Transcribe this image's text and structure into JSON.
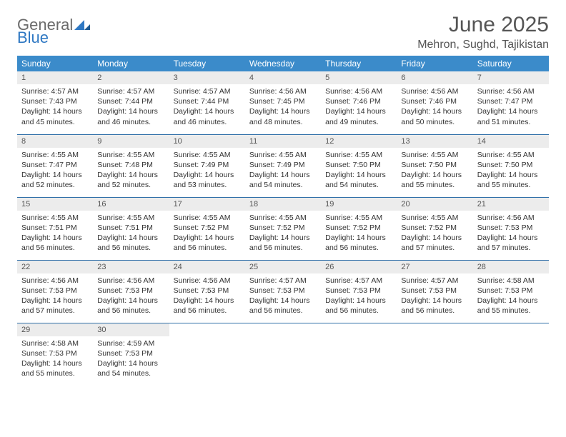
{
  "logo": {
    "line1": "General",
    "line2": "Blue"
  },
  "title": "June 2025",
  "location": "Mehron, Sughd, Tajikistan",
  "colors": {
    "header_bg": "#3b8bca",
    "header_text": "#ffffff",
    "daynum_bg": "#ececec",
    "border": "#2f6fa8",
    "logo_gray": "#6a6a6a",
    "logo_blue": "#2f78c3"
  },
  "weekdays": [
    "Sunday",
    "Monday",
    "Tuesday",
    "Wednesday",
    "Thursday",
    "Friday",
    "Saturday"
  ],
  "weeks": [
    [
      {
        "n": "1",
        "sr": "Sunrise: 4:57 AM",
        "ss": "Sunset: 7:43 PM",
        "d1": "Daylight: 14 hours",
        "d2": "and 45 minutes."
      },
      {
        "n": "2",
        "sr": "Sunrise: 4:57 AM",
        "ss": "Sunset: 7:44 PM",
        "d1": "Daylight: 14 hours",
        "d2": "and 46 minutes."
      },
      {
        "n": "3",
        "sr": "Sunrise: 4:57 AM",
        "ss": "Sunset: 7:44 PM",
        "d1": "Daylight: 14 hours",
        "d2": "and 46 minutes."
      },
      {
        "n": "4",
        "sr": "Sunrise: 4:56 AM",
        "ss": "Sunset: 7:45 PM",
        "d1": "Daylight: 14 hours",
        "d2": "and 48 minutes."
      },
      {
        "n": "5",
        "sr": "Sunrise: 4:56 AM",
        "ss": "Sunset: 7:46 PM",
        "d1": "Daylight: 14 hours",
        "d2": "and 49 minutes."
      },
      {
        "n": "6",
        "sr": "Sunrise: 4:56 AM",
        "ss": "Sunset: 7:46 PM",
        "d1": "Daylight: 14 hours",
        "d2": "and 50 minutes."
      },
      {
        "n": "7",
        "sr": "Sunrise: 4:56 AM",
        "ss": "Sunset: 7:47 PM",
        "d1": "Daylight: 14 hours",
        "d2": "and 51 minutes."
      }
    ],
    [
      {
        "n": "8",
        "sr": "Sunrise: 4:55 AM",
        "ss": "Sunset: 7:47 PM",
        "d1": "Daylight: 14 hours",
        "d2": "and 52 minutes."
      },
      {
        "n": "9",
        "sr": "Sunrise: 4:55 AM",
        "ss": "Sunset: 7:48 PM",
        "d1": "Daylight: 14 hours",
        "d2": "and 52 minutes."
      },
      {
        "n": "10",
        "sr": "Sunrise: 4:55 AM",
        "ss": "Sunset: 7:49 PM",
        "d1": "Daylight: 14 hours",
        "d2": "and 53 minutes."
      },
      {
        "n": "11",
        "sr": "Sunrise: 4:55 AM",
        "ss": "Sunset: 7:49 PM",
        "d1": "Daylight: 14 hours",
        "d2": "and 54 minutes."
      },
      {
        "n": "12",
        "sr": "Sunrise: 4:55 AM",
        "ss": "Sunset: 7:50 PM",
        "d1": "Daylight: 14 hours",
        "d2": "and 54 minutes."
      },
      {
        "n": "13",
        "sr": "Sunrise: 4:55 AM",
        "ss": "Sunset: 7:50 PM",
        "d1": "Daylight: 14 hours",
        "d2": "and 55 minutes."
      },
      {
        "n": "14",
        "sr": "Sunrise: 4:55 AM",
        "ss": "Sunset: 7:50 PM",
        "d1": "Daylight: 14 hours",
        "d2": "and 55 minutes."
      }
    ],
    [
      {
        "n": "15",
        "sr": "Sunrise: 4:55 AM",
        "ss": "Sunset: 7:51 PM",
        "d1": "Daylight: 14 hours",
        "d2": "and 56 minutes."
      },
      {
        "n": "16",
        "sr": "Sunrise: 4:55 AM",
        "ss": "Sunset: 7:51 PM",
        "d1": "Daylight: 14 hours",
        "d2": "and 56 minutes."
      },
      {
        "n": "17",
        "sr": "Sunrise: 4:55 AM",
        "ss": "Sunset: 7:52 PM",
        "d1": "Daylight: 14 hours",
        "d2": "and 56 minutes."
      },
      {
        "n": "18",
        "sr": "Sunrise: 4:55 AM",
        "ss": "Sunset: 7:52 PM",
        "d1": "Daylight: 14 hours",
        "d2": "and 56 minutes."
      },
      {
        "n": "19",
        "sr": "Sunrise: 4:55 AM",
        "ss": "Sunset: 7:52 PM",
        "d1": "Daylight: 14 hours",
        "d2": "and 56 minutes."
      },
      {
        "n": "20",
        "sr": "Sunrise: 4:55 AM",
        "ss": "Sunset: 7:52 PM",
        "d1": "Daylight: 14 hours",
        "d2": "and 57 minutes."
      },
      {
        "n": "21",
        "sr": "Sunrise: 4:56 AM",
        "ss": "Sunset: 7:53 PM",
        "d1": "Daylight: 14 hours",
        "d2": "and 57 minutes."
      }
    ],
    [
      {
        "n": "22",
        "sr": "Sunrise: 4:56 AM",
        "ss": "Sunset: 7:53 PM",
        "d1": "Daylight: 14 hours",
        "d2": "and 57 minutes."
      },
      {
        "n": "23",
        "sr": "Sunrise: 4:56 AM",
        "ss": "Sunset: 7:53 PM",
        "d1": "Daylight: 14 hours",
        "d2": "and 56 minutes."
      },
      {
        "n": "24",
        "sr": "Sunrise: 4:56 AM",
        "ss": "Sunset: 7:53 PM",
        "d1": "Daylight: 14 hours",
        "d2": "and 56 minutes."
      },
      {
        "n": "25",
        "sr": "Sunrise: 4:57 AM",
        "ss": "Sunset: 7:53 PM",
        "d1": "Daylight: 14 hours",
        "d2": "and 56 minutes."
      },
      {
        "n": "26",
        "sr": "Sunrise: 4:57 AM",
        "ss": "Sunset: 7:53 PM",
        "d1": "Daylight: 14 hours",
        "d2": "and 56 minutes."
      },
      {
        "n": "27",
        "sr": "Sunrise: 4:57 AM",
        "ss": "Sunset: 7:53 PM",
        "d1": "Daylight: 14 hours",
        "d2": "and 56 minutes."
      },
      {
        "n": "28",
        "sr": "Sunrise: 4:58 AM",
        "ss": "Sunset: 7:53 PM",
        "d1": "Daylight: 14 hours",
        "d2": "and 55 minutes."
      }
    ],
    [
      {
        "n": "29",
        "sr": "Sunrise: 4:58 AM",
        "ss": "Sunset: 7:53 PM",
        "d1": "Daylight: 14 hours",
        "d2": "and 55 minutes."
      },
      {
        "n": "30",
        "sr": "Sunrise: 4:59 AM",
        "ss": "Sunset: 7:53 PM",
        "d1": "Daylight: 14 hours",
        "d2": "and 54 minutes."
      },
      null,
      null,
      null,
      null,
      null
    ]
  ]
}
